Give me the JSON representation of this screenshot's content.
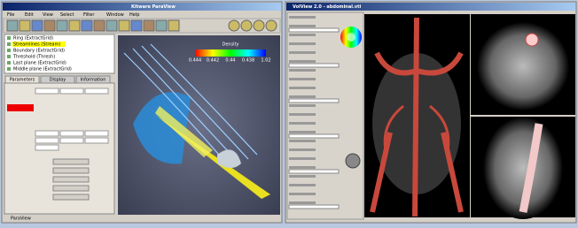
{
  "left_window": {
    "title": "Kitware ParaView",
    "menu": [
      "File",
      "Edit",
      "View",
      "Select",
      "Filter",
      "Window",
      "Help"
    ],
    "pipeline": [
      "Ring (ExtractGrid)",
      "Streamlines (Stream)",
      "Boundary (ExtractGrid)",
      "Threshold (Thresh)",
      "Last plane (ExtractGrid)",
      "Middle plane (ExtractGrid)"
    ],
    "tabs": [
      "Parameters",
      "Display",
      "Information"
    ],
    "colorbar": {
      "title": "Density",
      "labels": [
        "0.444",
        "0.442",
        "0.44",
        "0.438",
        "1.02"
      ]
    },
    "status": "ParaView"
  },
  "right_window": {
    "title": "VolView 2.0 - abdominal.vti"
  }
}
